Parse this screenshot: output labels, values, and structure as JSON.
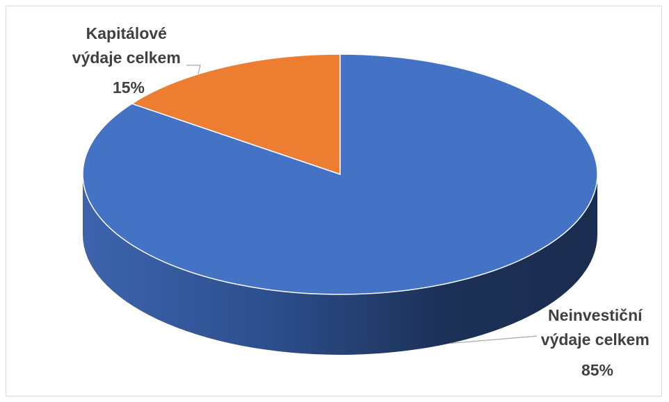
{
  "chart_data": {
    "type": "pie",
    "style": "3d",
    "slices": [
      {
        "name": "Neinvestiční výdaje celkem",
        "value": 85,
        "label": "85%",
        "color": "#4472c4"
      },
      {
        "name": "Kapitálové výdaje celkem",
        "value": 15,
        "label": "15%",
        "color": "#ed7d31"
      }
    ],
    "legend": "none",
    "data_labels": "outside with leader lines"
  }
}
